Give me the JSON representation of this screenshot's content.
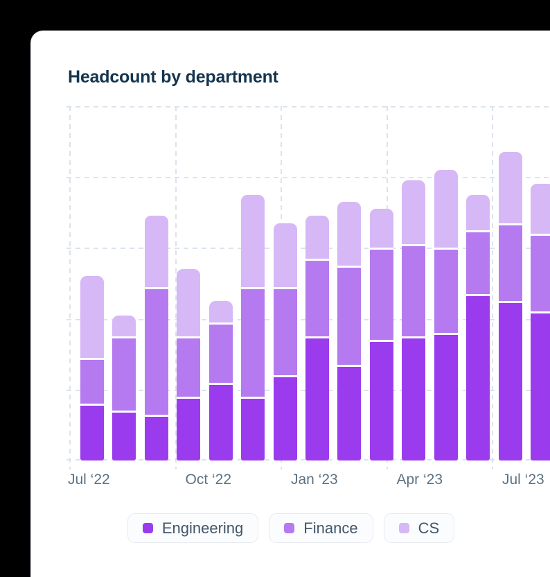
{
  "header": {
    "title": "Headcount by department"
  },
  "chart_data": {
    "type": "bar",
    "stacked": true,
    "title": "Headcount by department",
    "bar_count": 15,
    "x_tick_labels": [
      "Jul ‘22",
      "Oct ‘22",
      "Jan ‘23",
      "Apr ‘23",
      "Jul ‘23"
    ],
    "x_ticks_every_n_bars": 3,
    "xlabel": "",
    "ylabel": "",
    "y_axis_labels_visible": false,
    "ylim": [
      0,
      100
    ],
    "y_gridline_step": 20,
    "grid": "dashed",
    "legend_position": "bottom",
    "stack_order_bottom_to_top": [
      "Engineering",
      "Finance",
      "CS"
    ],
    "series": [
      {
        "name": "Engineering",
        "color": "#9a3cee",
        "values": [
          16,
          14,
          13,
          18,
          22,
          18,
          24,
          35,
          27,
          34,
          35,
          36,
          47,
          45,
          42
        ]
      },
      {
        "name": "Finance",
        "color": "#b67af0",
        "values": [
          13,
          21,
          36,
          17,
          17,
          31,
          25,
          22,
          28,
          26,
          26,
          24,
          18,
          22,
          22
        ]
      },
      {
        "name": "CS",
        "color": "#d6b8f6",
        "values": [
          23,
          6,
          20,
          19,
          6,
          26,
          18,
          12,
          18,
          11,
          18,
          22,
          10,
          20,
          14
        ]
      }
    ]
  },
  "colors": {
    "page_background": "#000000",
    "card_background": "#ffffff",
    "title_text": "#14344e",
    "axis_label_text": "#5c7283",
    "gridline": "#dce3ec",
    "legend_text": "#41566a",
    "legend_pill_background": "#fbfcfd",
    "legend_pill_border": "#e7ebf1",
    "segment_separator": "#ffffff"
  }
}
